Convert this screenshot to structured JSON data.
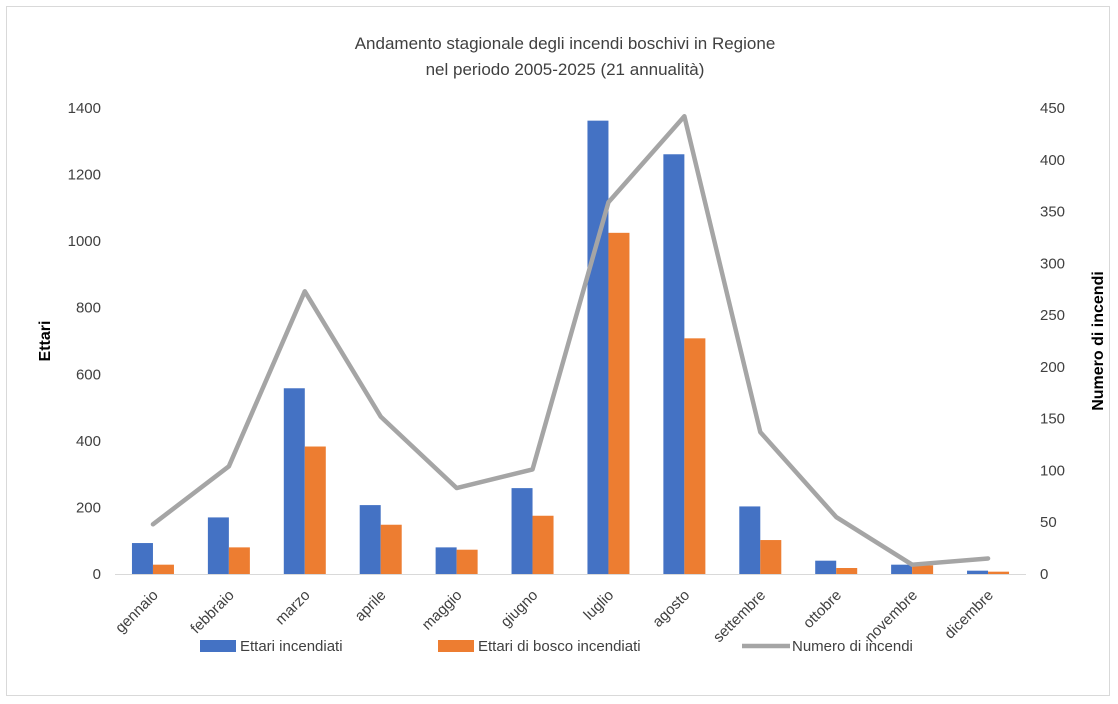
{
  "chart_data": {
    "type": "bar",
    "title": [
      "Andamento stagionale degli incendi boschivi in Regione",
      "nel periodo 2005-2025 (21 annualità)"
    ],
    "categories": [
      "gennaio",
      "febbraio",
      "marzo",
      "aprile",
      "maggio",
      "giugno",
      "luglio",
      "agosto",
      "settembre",
      "ottobre",
      "novembre",
      "dicembre"
    ],
    "ylabel_left": "Ettari",
    "ylabel_right": "Numero di incendi",
    "ylim_left": [
      0,
      1400
    ],
    "yticks_left": [
      0,
      200,
      400,
      600,
      800,
      1000,
      1200,
      1400
    ],
    "ylim_right": [
      0,
      450
    ],
    "yticks_right": [
      0,
      50,
      100,
      150,
      200,
      250,
      300,
      350,
      400,
      450
    ],
    "grid": false,
    "legend_position": "bottom",
    "series": [
      {
        "name": "Ettari incendiati",
        "type": "bar",
        "axis": "left",
        "color": "#4472C4",
        "values": [
          93,
          170,
          558,
          207,
          80,
          258,
          1362,
          1261,
          203,
          40,
          28,
          10
        ]
      },
      {
        "name": "Ettari di bosco incendiati",
        "type": "bar",
        "axis": "left",
        "color": "#ED7D31",
        "values": [
          28,
          80,
          383,
          148,
          73,
          175,
          1025,
          708,
          102,
          18,
          26,
          7
        ]
      },
      {
        "name": "Numero di incendi",
        "type": "line",
        "axis": "right",
        "color": "#A5A5A5",
        "values": [
          48,
          104,
          273,
          152,
          83,
          101,
          359,
          442,
          137,
          55,
          9,
          15
        ]
      }
    ]
  }
}
